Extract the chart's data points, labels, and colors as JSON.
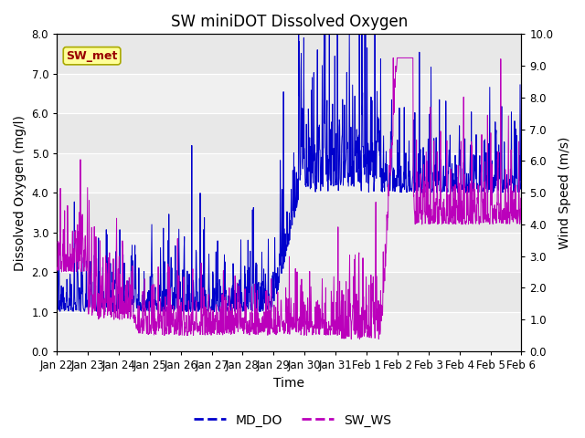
{
  "title": "SW miniDOT Dissolved Oxygen",
  "ylabel_left": "Dissolved Oxygen (mg/l)",
  "ylabel_right": "Wind Speed (m/s)",
  "xlabel": "Time",
  "ylim_left": [
    0.0,
    8.0
  ],
  "ylim_right": [
    0.0,
    10.0
  ],
  "yticks_left": [
    0.0,
    1.0,
    2.0,
    3.0,
    4.0,
    5.0,
    6.0,
    7.0,
    8.0
  ],
  "yticks_right": [
    0.0,
    1.0,
    2.0,
    3.0,
    4.0,
    5.0,
    6.0,
    7.0,
    8.0,
    9.0,
    10.0
  ],
  "xtick_labels": [
    "Jan 22",
    "Jan 23",
    "Jan 24",
    "Jan 25",
    "Jan 26",
    "Jan 27",
    "Jan 28",
    "Jan 29",
    "Jan 30",
    "Jan 31",
    "Feb 1",
    "Feb 2",
    "Feb 3",
    "Feb 4",
    "Feb 5",
    "Feb 6"
  ],
  "color_do": "#0000cc",
  "color_ws": "#bb00bb",
  "legend_label_do": "MD_DO",
  "legend_label_ws": "SW_WS",
  "annotation_text": "SW_met",
  "annotation_color": "#990000",
  "annotation_bg": "#ffff99",
  "annotation_border": "#aaaa00",
  "fig_bg": "#ffffff",
  "panel_bg": "#e8e8e8",
  "grid_color": "#ffffff",
  "title_fontsize": 12,
  "axis_label_fontsize": 10,
  "tick_fontsize": 8.5,
  "legend_fontsize": 10,
  "seed": 42,
  "n_days": 15,
  "ppd": 96
}
